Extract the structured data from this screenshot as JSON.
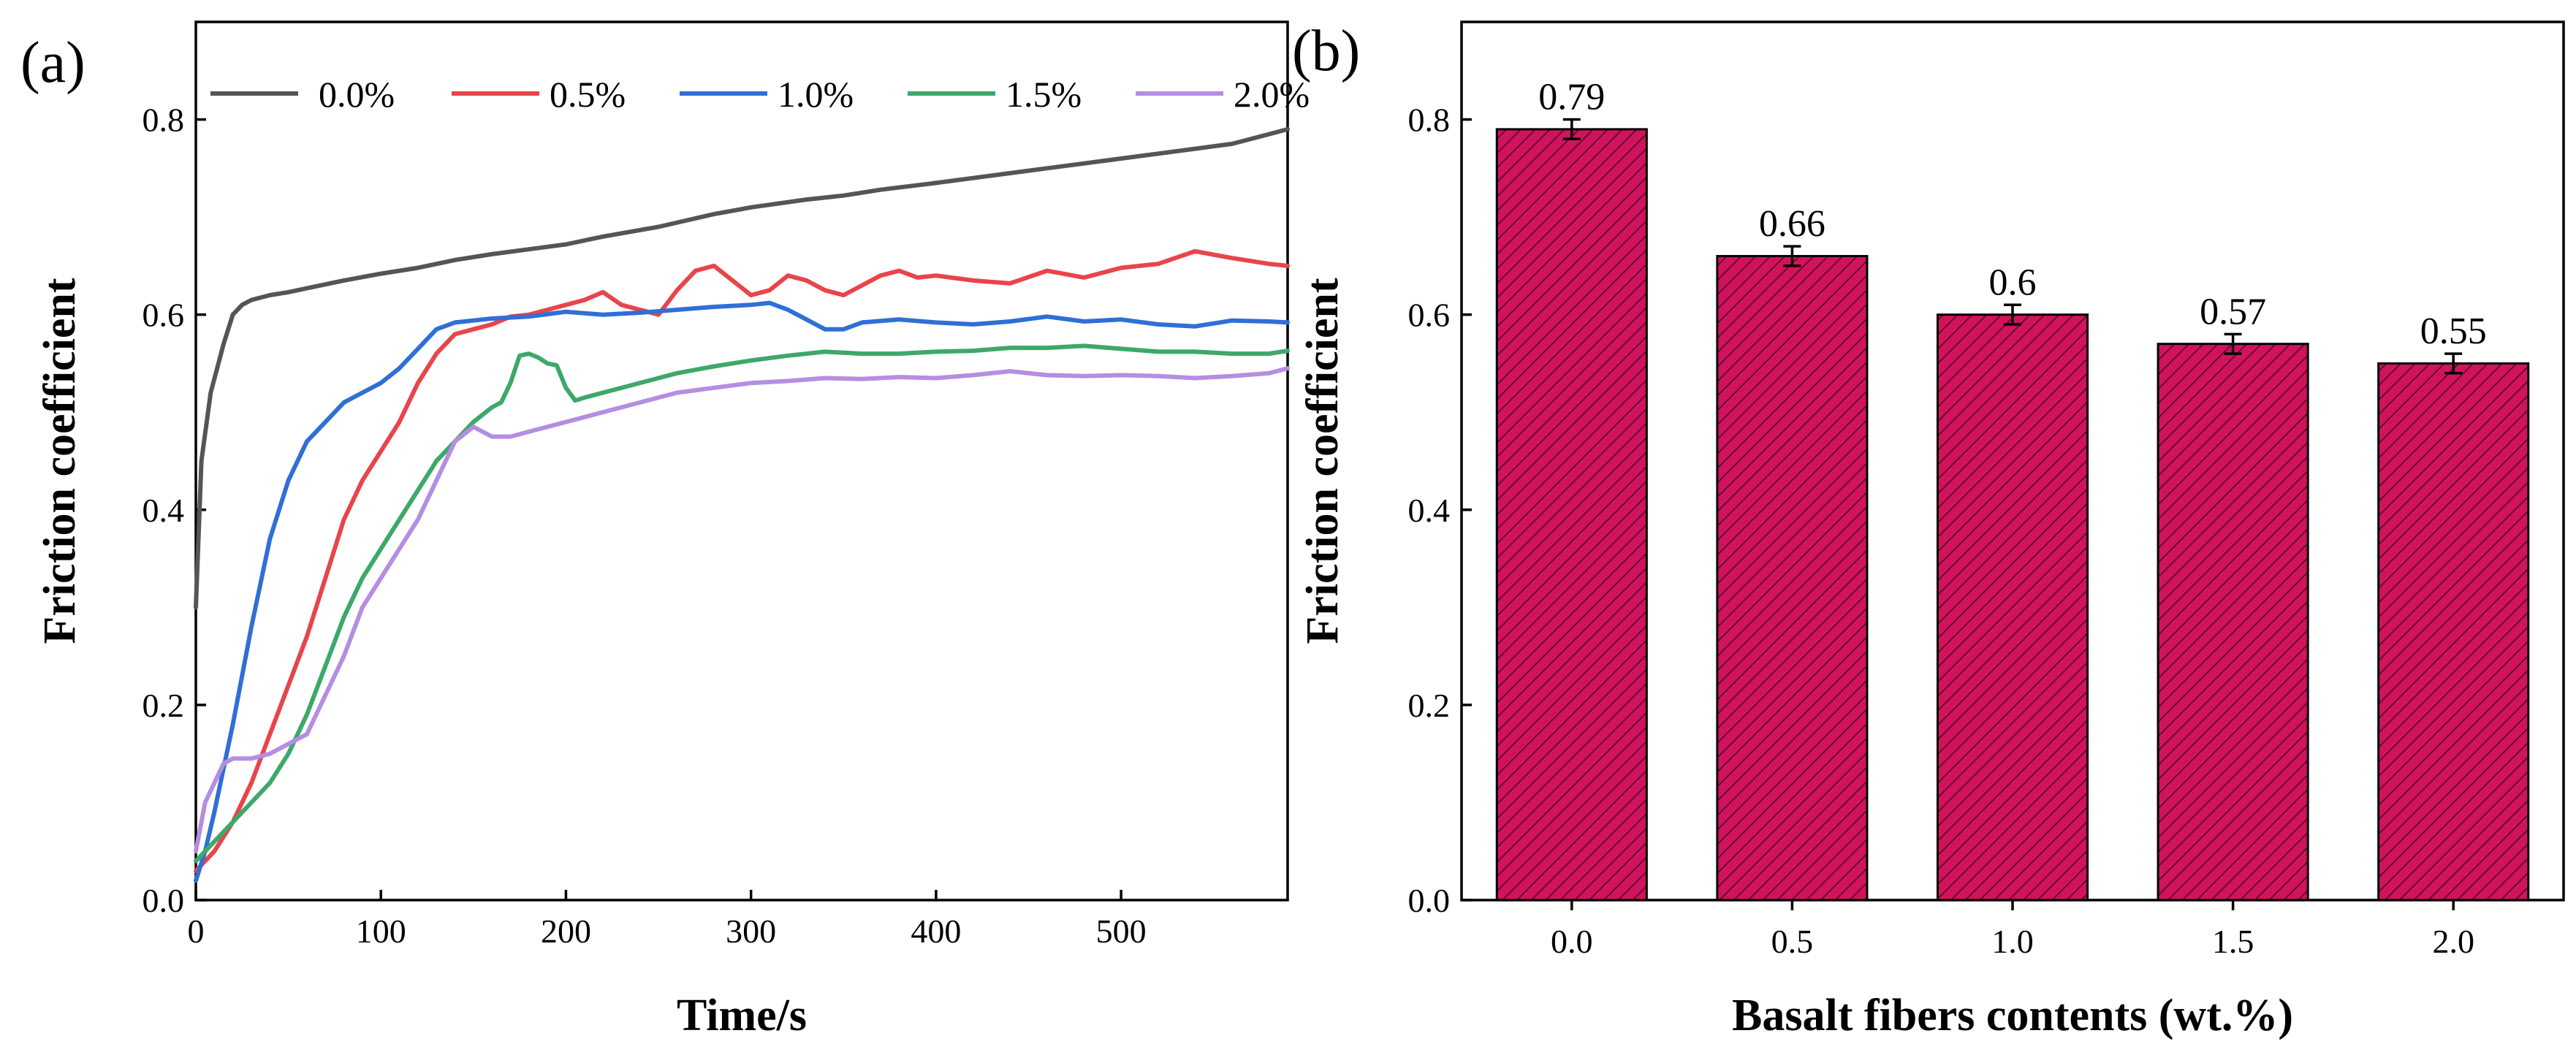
{
  "chart_data": [
    {
      "type": "line",
      "panel_label": "(a)",
      "xlabel": "Time/s",
      "ylabel": "Friction coefficient",
      "xlim": [
        0,
        590
      ],
      "ylim": [
        0,
        0.9
      ],
      "xticks": [
        0,
        100,
        200,
        300,
        400,
        500
      ],
      "xtick_labels": [
        "0",
        "100",
        "200",
        "300",
        "400",
        "500"
      ],
      "yticks": [
        0.0,
        0.2,
        0.4,
        0.6,
        0.8
      ],
      "ytick_labels": [
        "0.0",
        "0.2",
        "0.4",
        "0.6",
        "0.8"
      ],
      "legend_position": "top",
      "series": [
        {
          "name": "0.0%",
          "color": "#555555",
          "x": [
            0,
            3,
            8,
            15,
            20,
            25,
            30,
            40,
            50,
            60,
            80,
            100,
            120,
            140,
            160,
            180,
            200,
            220,
            250,
            280,
            300,
            330,
            350,
            370,
            400,
            420,
            440,
            460,
            480,
            500,
            520,
            540,
            560,
            580,
            590
          ],
          "y": [
            0.3,
            0.45,
            0.52,
            0.57,
            0.6,
            0.61,
            0.615,
            0.62,
            0.623,
            0.627,
            0.635,
            0.642,
            0.648,
            0.656,
            0.662,
            0.667,
            0.672,
            0.68,
            0.69,
            0.703,
            0.71,
            0.718,
            0.722,
            0.728,
            0.735,
            0.74,
            0.745,
            0.75,
            0.755,
            0.76,
            0.765,
            0.77,
            0.775,
            0.785,
            0.79
          ]
        },
        {
          "name": "0.5%",
          "color": "#e8454a",
          "x": [
            0,
            10,
            20,
            30,
            40,
            50,
            60,
            70,
            80,
            90,
            100,
            110,
            120,
            130,
            140,
            150,
            160,
            170,
            180,
            190,
            200,
            210,
            220,
            230,
            240,
            250,
            260,
            270,
            280,
            290,
            300,
            310,
            320,
            330,
            340,
            350,
            360,
            370,
            380,
            390,
            400,
            420,
            440,
            460,
            480,
            500,
            520,
            540,
            560,
            580,
            590
          ],
          "y": [
            0.03,
            0.05,
            0.08,
            0.12,
            0.17,
            0.22,
            0.27,
            0.33,
            0.39,
            0.43,
            0.46,
            0.49,
            0.53,
            0.56,
            0.58,
            0.585,
            0.59,
            0.598,
            0.6,
            0.605,
            0.61,
            0.615,
            0.623,
            0.61,
            0.605,
            0.6,
            0.625,
            0.645,
            0.65,
            0.635,
            0.62,
            0.625,
            0.64,
            0.635,
            0.625,
            0.62,
            0.63,
            0.64,
            0.645,
            0.638,
            0.64,
            0.635,
            0.632,
            0.645,
            0.638,
            0.648,
            0.652,
            0.665,
            0.658,
            0.652,
            0.65
          ]
        },
        {
          "name": "1.0%",
          "color": "#2f6fd6",
          "x": [
            0,
            5,
            10,
            20,
            30,
            40,
            50,
            60,
            70,
            80,
            90,
            100,
            110,
            120,
            130,
            140,
            150,
            160,
            180,
            200,
            220,
            240,
            260,
            280,
            300,
            310,
            320,
            330,
            340,
            350,
            360,
            380,
            400,
            420,
            440,
            460,
            480,
            500,
            520,
            540,
            560,
            580,
            590
          ],
          "y": [
            0.02,
            0.05,
            0.09,
            0.18,
            0.28,
            0.37,
            0.43,
            0.47,
            0.49,
            0.51,
            0.52,
            0.53,
            0.545,
            0.565,
            0.585,
            0.592,
            0.594,
            0.596,
            0.598,
            0.603,
            0.6,
            0.602,
            0.605,
            0.608,
            0.61,
            0.612,
            0.605,
            0.595,
            0.585,
            0.585,
            0.592,
            0.595,
            0.592,
            0.59,
            0.593,
            0.598,
            0.593,
            0.595,
            0.59,
            0.588,
            0.594,
            0.593,
            0.592
          ]
        },
        {
          "name": "1.5%",
          "color": "#3da86a",
          "x": [
            0,
            10,
            20,
            30,
            40,
            50,
            60,
            70,
            80,
            90,
            100,
            110,
            120,
            130,
            140,
            150,
            160,
            165,
            170,
            175,
            180,
            185,
            190,
            195,
            200,
            205,
            210,
            220,
            240,
            260,
            280,
            300,
            320,
            340,
            360,
            380,
            400,
            420,
            440,
            460,
            480,
            500,
            520,
            540,
            560,
            580,
            590
          ],
          "y": [
            0.04,
            0.06,
            0.08,
            0.1,
            0.12,
            0.15,
            0.19,
            0.24,
            0.29,
            0.33,
            0.36,
            0.39,
            0.42,
            0.45,
            0.47,
            0.49,
            0.505,
            0.51,
            0.53,
            0.558,
            0.56,
            0.556,
            0.55,
            0.548,
            0.525,
            0.512,
            0.515,
            0.52,
            0.53,
            0.54,
            0.547,
            0.553,
            0.558,
            0.562,
            0.56,
            0.56,
            0.562,
            0.563,
            0.566,
            0.566,
            0.568,
            0.565,
            0.562,
            0.562,
            0.56,
            0.56,
            0.563
          ]
        },
        {
          "name": "2.0%",
          "color": "#b48ee2",
          "x": [
            0,
            3,
            5,
            10,
            15,
            20,
            30,
            40,
            50,
            60,
            70,
            80,
            90,
            100,
            110,
            120,
            130,
            140,
            150,
            155,
            160,
            170,
            180,
            200,
            220,
            240,
            260,
            280,
            300,
            320,
            340,
            360,
            380,
            400,
            420,
            440,
            460,
            480,
            500,
            520,
            540,
            560,
            580,
            590
          ],
          "y": [
            0.05,
            0.08,
            0.1,
            0.12,
            0.14,
            0.145,
            0.145,
            0.15,
            0.16,
            0.17,
            0.21,
            0.25,
            0.3,
            0.33,
            0.36,
            0.39,
            0.43,
            0.47,
            0.485,
            0.48,
            0.475,
            0.475,
            0.48,
            0.49,
            0.5,
            0.51,
            0.52,
            0.525,
            0.53,
            0.532,
            0.535,
            0.534,
            0.536,
            0.535,
            0.538,
            0.542,
            0.538,
            0.537,
            0.538,
            0.537,
            0.535,
            0.537,
            0.54,
            0.545
          ]
        }
      ]
    },
    {
      "type": "bar",
      "panel_label": "(b)",
      "xlabel": "Basalt fibers contents (wt.%)",
      "ylabel": "Friction coefficient",
      "ylim": [
        0,
        0.9
      ],
      "yticks": [
        0.0,
        0.2,
        0.4,
        0.6,
        0.8
      ],
      "ytick_labels": [
        "0.0",
        "0.2",
        "0.4",
        "0.6",
        "0.8"
      ],
      "categories": [
        "0.0",
        "0.5",
        "1.0",
        "1.5",
        "2.0"
      ],
      "values": [
        0.79,
        0.66,
        0.6,
        0.57,
        0.55
      ],
      "value_labels": [
        "0.79",
        "0.66",
        "0.6",
        "0.57",
        "0.55"
      ],
      "errors": [
        0.01,
        0.01,
        0.01,
        0.01,
        0.01
      ],
      "bar_color": "#d1135d",
      "hatch_color": "#5a0a2a"
    }
  ]
}
